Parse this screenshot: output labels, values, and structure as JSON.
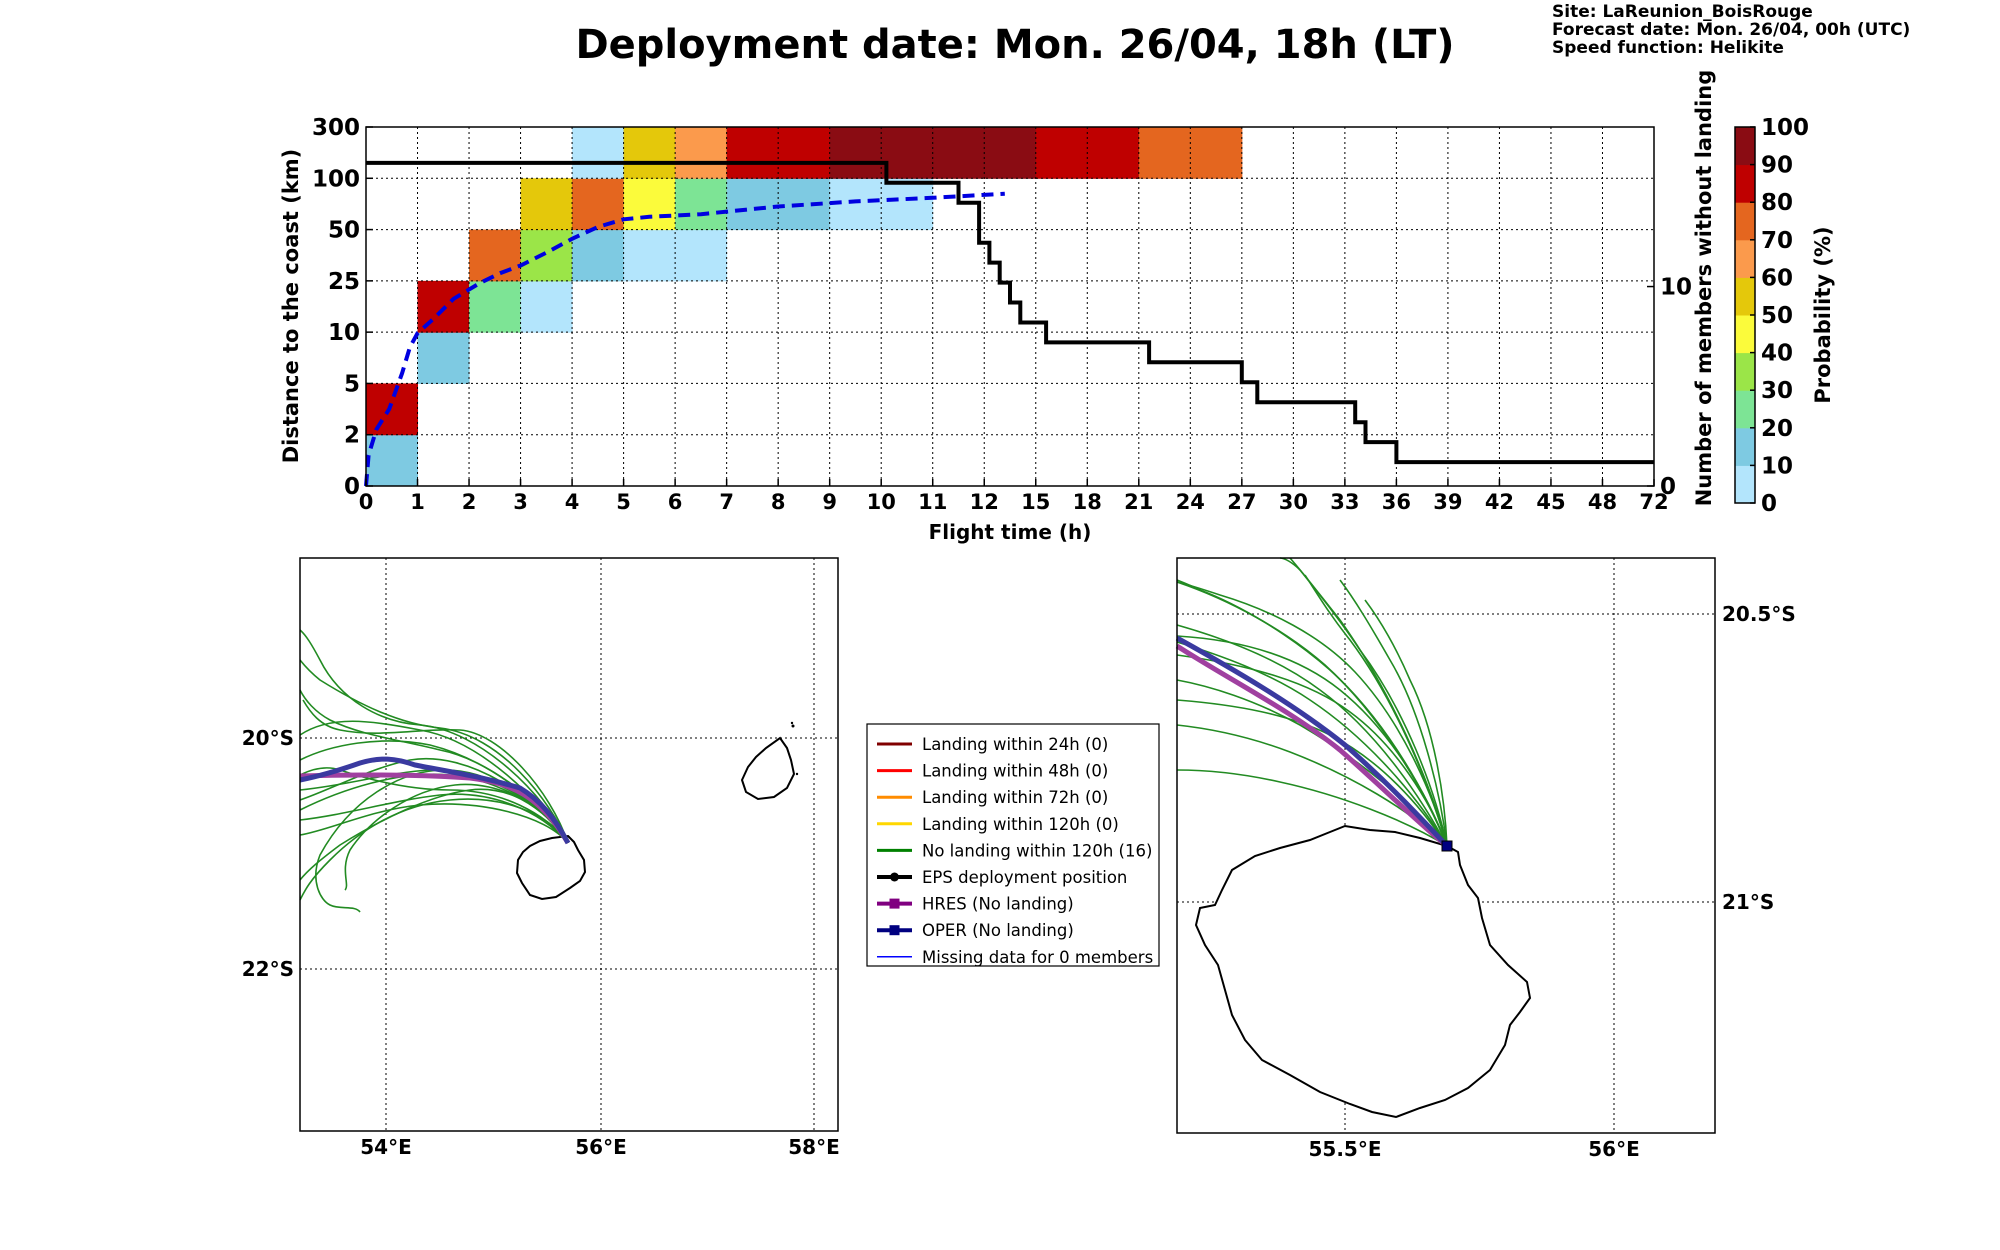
{
  "header": {
    "title": "Deployment date: Mon. 26/04, 18h (LT)",
    "info": [
      "Site: LaReunion_BoisRouge",
      "Forecast date: Mon. 26/04, 00h (UTC)",
      "Speed function: Helikite"
    ]
  },
  "chart_data": [
    {
      "type": "heatmap",
      "title": "",
      "xlabel": "Flight time (h)",
      "ylabel": "Distance to the coast (km)",
      "y2label": "Number of members without landing",
      "colorbar_label": "Probability (%)",
      "x_ticks": [
        "0",
        "1",
        "2",
        "3",
        "4",
        "5",
        "6",
        "7",
        "8",
        "9",
        "10",
        "11",
        "12",
        "15",
        "18",
        "21",
        "24",
        "27",
        "30",
        "33",
        "36",
        "39",
        "42",
        "45",
        "48",
        "72"
      ],
      "y_ticks": [
        "0",
        "2",
        "5",
        "10",
        "25",
        "50",
        "100",
        "300"
      ],
      "y2_ticks": [
        "0",
        "10"
      ],
      "y2_range": [
        0,
        18
      ],
      "colorbar_ticks": [
        "0",
        "10",
        "20",
        "30",
        "40",
        "50",
        "60",
        "70",
        "80",
        "90",
        "100"
      ],
      "colorbar_colors": [
        "#b3e5fc",
        "#7ecae2",
        "#7de495",
        "#9be548",
        "#fbfb3b",
        "#e4c80b",
        "#fb9a4c",
        "#e4661f",
        "#bf0000",
        "#8a0c13"
      ],
      "grid": true,
      "cells": [
        {
          "x": 0,
          "y": 0,
          "p": 10
        },
        {
          "x": 0,
          "y": 1,
          "p": 80
        },
        {
          "x": 1,
          "y": 2,
          "p": 10
        },
        {
          "x": 1,
          "y": 3,
          "p": 80
        },
        {
          "x": 2,
          "y": 3,
          "p": 20
        },
        {
          "x": 2,
          "y": 4,
          "p": 70
        },
        {
          "x": 3,
          "y": 3,
          "p": 0
        },
        {
          "x": 3,
          "y": 4,
          "p": 30
        },
        {
          "x": 3,
          "y": 5,
          "p": 50
        },
        {
          "x": 4,
          "y": 4,
          "p": 10
        },
        {
          "x": 4,
          "y": 5,
          "p": 70
        },
        {
          "x": 4,
          "y": 6,
          "p": 0
        },
        {
          "x": 5,
          "y": 4,
          "p": 0
        },
        {
          "x": 5,
          "y": 5,
          "p": 40
        },
        {
          "x": 5,
          "y": 6,
          "p": 50
        },
        {
          "x": 6,
          "y": 4,
          "p": 0
        },
        {
          "x": 6,
          "y": 5,
          "p": 20
        },
        {
          "x": 6,
          "y": 6,
          "p": 60
        },
        {
          "x": 7,
          "y": 5,
          "p": 10
        },
        {
          "x": 7,
          "y": 6,
          "p": 80
        },
        {
          "x": 8,
          "y": 5,
          "p": 10
        },
        {
          "x": 8,
          "y": 6,
          "p": 80
        },
        {
          "x": 9,
          "y": 5,
          "p": 0
        },
        {
          "x": 9,
          "y": 6,
          "p": 90
        },
        {
          "x": 10,
          "y": 5,
          "p": 0
        },
        {
          "x": 10,
          "y": 6,
          "p": 90
        },
        {
          "x": 11,
          "y": 6,
          "p": 90
        },
        {
          "x": 12,
          "y": 6,
          "p": 90
        },
        {
          "x": 13,
          "y": 6,
          "p": 80
        },
        {
          "x": 14,
          "y": 6,
          "p": 80
        },
        {
          "x": 15,
          "y": 6,
          "p": 70
        },
        {
          "x": 16,
          "y": 6,
          "p": 70
        }
      ],
      "series": [
        {
          "name": "Number of members without landing",
          "style": "solid",
          "color": "#000000",
          "axis": "right",
          "points": [
            [
              0,
              16.2
            ],
            [
              10.1,
              16.2
            ],
            [
              10.1,
              15.2
            ],
            [
              11.5,
              15.2
            ],
            [
              11.5,
              14.2
            ],
            [
              11.9,
              14.2
            ],
            [
              11.9,
              12.2
            ],
            [
              12.1,
              12.2
            ],
            [
              12.1,
              11.2
            ],
            [
              12.3,
              11.2
            ],
            [
              12.3,
              10.2
            ],
            [
              12.5,
              10.2
            ],
            [
              12.5,
              9.2
            ],
            [
              12.7,
              9.2
            ],
            [
              12.7,
              8.2
            ],
            [
              13.2,
              8.2
            ],
            [
              13.2,
              7.2
            ],
            [
              15.2,
              7.2
            ],
            [
              15.2,
              6.2
            ],
            [
              17.0,
              6.2
            ],
            [
              17.0,
              5.2
            ],
            [
              17.3,
              5.2
            ],
            [
              17.3,
              4.2
            ],
            [
              19.2,
              4.2
            ],
            [
              19.2,
              3.2
            ],
            [
              19.4,
              3.2
            ],
            [
              19.4,
              2.2
            ],
            [
              20.0,
              2.2
            ],
            [
              20.0,
              1.2
            ],
            [
              25,
              1.2
            ]
          ]
        },
        {
          "name": "Mean distance",
          "style": "dashed",
          "color": "#0000e0",
          "axis": "left",
          "points": [
            [
              0,
              0.0
            ],
            [
              0.05,
              0.6
            ],
            [
              0.2,
              1.1
            ],
            [
              0.45,
              1.5
            ],
            [
              0.7,
              2.2
            ],
            [
              0.85,
              2.7
            ],
            [
              1.0,
              2.98
            ],
            [
              1.3,
              3.25
            ],
            [
              1.7,
              3.65
            ],
            [
              2.2,
              3.95
            ],
            [
              2.6,
              4.15
            ],
            [
              3.0,
              4.3
            ],
            [
              3.5,
              4.55
            ],
            [
              4.0,
              4.82
            ],
            [
              4.5,
              5.05
            ],
            [
              5.0,
              5.2
            ],
            [
              5.5,
              5.25
            ],
            [
              6.5,
              5.3
            ],
            [
              8.0,
              5.45
            ],
            [
              9.5,
              5.55
            ],
            [
              11.0,
              5.62
            ],
            [
              12.4,
              5.7
            ]
          ]
        }
      ]
    },
    {
      "type": "map",
      "title": "",
      "lon_ticks": [
        "54°E",
        "56°E",
        "58°E"
      ],
      "lat_ticks": [
        "20°S",
        "22°S"
      ],
      "lon_range": [
        53.25,
        58.2
      ],
      "lat_range": [
        -23.4,
        -18.4
      ],
      "grid": true
    },
    {
      "type": "map",
      "title": "",
      "lon_ticks": [
        "55.5°E",
        "56°E"
      ],
      "lat_ticks": [
        "20.5°S",
        "21°S"
      ],
      "lon_range": [
        55.18,
        56.18
      ],
      "lat_range": [
        -21.4,
        -20.4
      ],
      "grid": true
    }
  ],
  "legend": {
    "entries": [
      {
        "label": "Landing within 24h (0)",
        "color": "#800000",
        "marker": "line"
      },
      {
        "label": "Landing within 48h (0)",
        "color": "#ff0000",
        "marker": "line"
      },
      {
        "label": "Landing within 72h (0)",
        "color": "#ff8c00",
        "marker": "line"
      },
      {
        "label": "Landing within 120h (0)",
        "color": "#ffd700",
        "marker": "line"
      },
      {
        "label": "No landing within 120h (16)",
        "color": "#008000",
        "marker": "line"
      },
      {
        "label": "EPS deployment position",
        "color": "#000000",
        "marker": "circle"
      },
      {
        "label": "HRES (No landing)",
        "color": "#800080",
        "marker": "square"
      },
      {
        "label": "OPER (No landing)",
        "color": "#000080",
        "marker": "square"
      },
      {
        "label": "Missing data for 0 members",
        "color": "#0000ff",
        "marker": "thin"
      }
    ]
  },
  "colors": {
    "members": "#228b22",
    "hres": "#a040a0",
    "oper": "#3a3aa0"
  }
}
